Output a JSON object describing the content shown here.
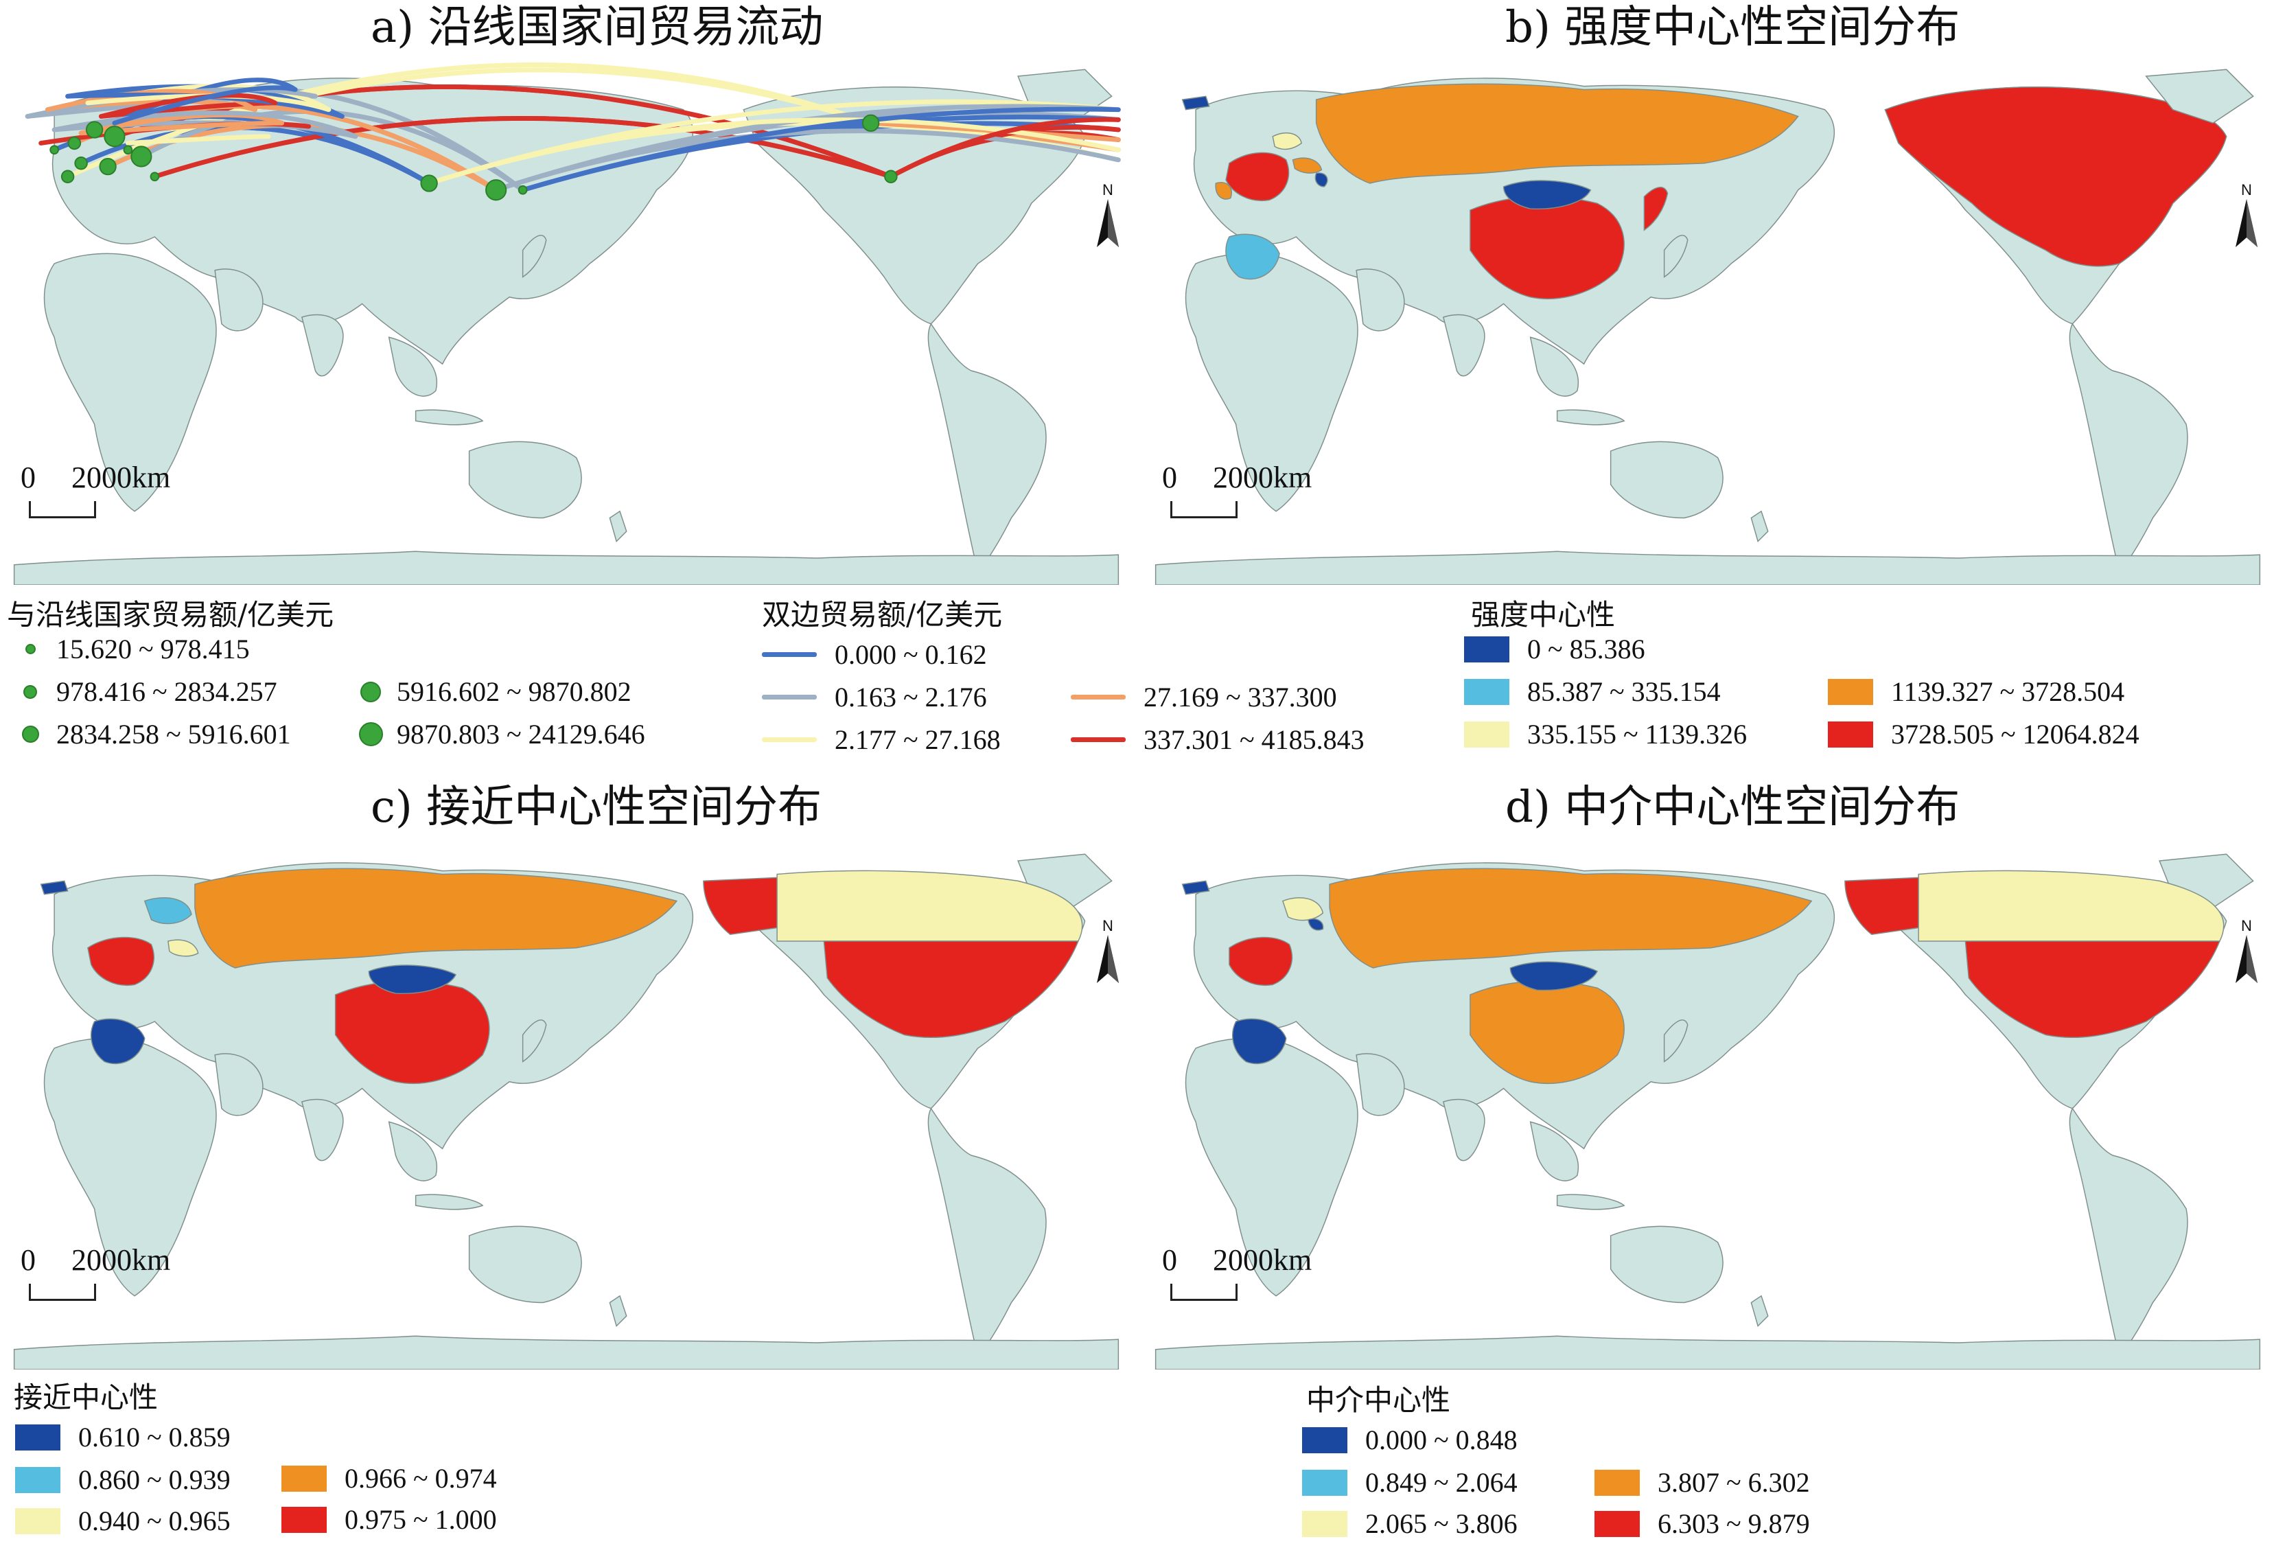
{
  "colors": {
    "ocean": "#ffffff",
    "land": "#cde4e0",
    "land_border": "#7f8f8c",
    "dark_blue": "#1a47a0",
    "light_blue": "#55bde0",
    "pale_yellow": "#f6f2b0",
    "orange": "#ee9122",
    "red": "#e4231e",
    "node_green": "#3aa53a"
  },
  "panels": {
    "a": {
      "title": "a) 沿线国家间贸易流动",
      "scale_zero": "0",
      "scale_dist": "2000km",
      "north_label": "N",
      "node_legend": {
        "title": "与沿线国家贸易额/亿美元",
        "items": [
          {
            "label": "15.620 ~ 978.415",
            "size": 1
          },
          {
            "label": "978.416 ~ 2834.257",
            "size": 2
          },
          {
            "label": "2834.258 ~ 5916.601",
            "size": 3
          },
          {
            "label": "5916.602 ~ 9870.802",
            "size": 4
          },
          {
            "label": "9870.803 ~ 24129.646",
            "size": 5
          }
        ]
      },
      "flow_legend": {
        "title": "双边贸易额/亿美元",
        "items": [
          {
            "label": "0.000 ~ 0.162",
            "color": "#4472c4"
          },
          {
            "label": "0.163 ~ 2.176",
            "color": "#9db0c4"
          },
          {
            "label": "2.177 ~ 27.168",
            "color": "#f9f3b0"
          },
          {
            "label": "27.169 ~ 337.300",
            "color": "#f2a067"
          },
          {
            "label": "337.301 ~ 4185.843",
            "color": "#d7312a"
          }
        ]
      }
    },
    "b": {
      "title": "b) 强度中心性空间分布",
      "scale_zero": "0",
      "scale_dist": "2000km",
      "north_label": "N",
      "legend": {
        "title": "强度中心性",
        "items": [
          {
            "label": "0 ~ 85.386",
            "color": "#1a47a0"
          },
          {
            "label": "85.387 ~ 335.154",
            "color": "#55bde0"
          },
          {
            "label": "335.155 ~ 1139.326",
            "color": "#f6f2b0"
          },
          {
            "label": "1139.327 ~ 3728.504",
            "color": "#ee9122"
          },
          {
            "label": "3728.505 ~ 12064.824",
            "color": "#e4231e"
          }
        ]
      }
    },
    "c": {
      "title": "c) 接近中心性空间分布",
      "scale_zero": "0",
      "scale_dist": "2000km",
      "north_label": "N",
      "legend": {
        "title": "接近中心性",
        "items": [
          {
            "label": "0.610 ~ 0.859",
            "color": "#1a47a0"
          },
          {
            "label": "0.860 ~ 0.939",
            "color": "#55bde0"
          },
          {
            "label": "0.940 ~ 0.965",
            "color": "#f6f2b0"
          },
          {
            "label": "0.966 ~ 0.974",
            "color": "#ee9122"
          },
          {
            "label": "0.975 ~ 1.000",
            "color": "#e4231e"
          }
        ]
      }
    },
    "d": {
      "title": "d) 中介中心性空间分布",
      "scale_zero": "0",
      "scale_dist": "2000km",
      "north_label": "N",
      "legend": {
        "title": "中介中心性",
        "items": [
          {
            "label": "0.000 ~ 0.848",
            "color": "#1a47a0"
          },
          {
            "label": "0.849 ~ 2.064",
            "color": "#55bde0"
          },
          {
            "label": "2.065 ~ 3.806",
            "color": "#f6f2b0"
          },
          {
            "label": "3.807 ~ 6.302",
            "color": "#ee9122"
          },
          {
            "label": "6.303 ~ 9.879",
            "color": "#e4231e"
          }
        ]
      }
    }
  }
}
